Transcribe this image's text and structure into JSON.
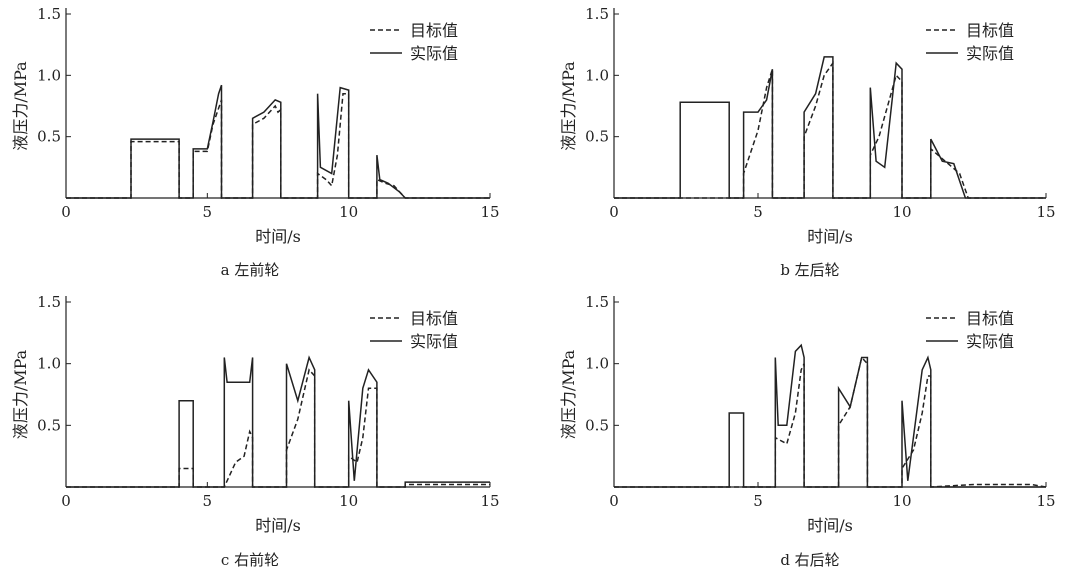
{
  "chart_data": [
    {
      "type": "line",
      "caption": "a 左前轮",
      "xlabel": "时间/s",
      "ylabel": "液压力/MPa",
      "xlim": [
        0,
        15
      ],
      "ylim": [
        0,
        1.5
      ],
      "xticks": [
        "0",
        "5",
        "10",
        "15"
      ],
      "yticks": [
        "0.5",
        "1.0",
        "1.5"
      ],
      "legend": {
        "position": "top-right",
        "entries": [
          "目标值",
          "实际值"
        ]
      },
      "series": [
        {
          "name": "目标值",
          "style": "dashed",
          "x": [
            0,
            2.3,
            2.3,
            4.0,
            4.0,
            4.5,
            4.5,
            5.0,
            5.2,
            5.5,
            5.5,
            6.6,
            6.6,
            7.0,
            7.4,
            7.5,
            7.6,
            7.6,
            8.9,
            8.9,
            9.2,
            9.4,
            9.6,
            9.7,
            9.8,
            10.0,
            10.0,
            11.0,
            11.0,
            11.3,
            11.6,
            12.0,
            15
          ],
          "y": [
            0,
            0,
            0.46,
            0.46,
            0,
            0,
            0.38,
            0.38,
            0.6,
            0.8,
            0,
            0,
            0.6,
            0.65,
            0.75,
            0.7,
            0.72,
            0,
            0,
            0.2,
            0.15,
            0.1,
            0.35,
            0.6,
            0.85,
            0.85,
            0,
            0,
            0.15,
            0.12,
            0.1,
            0,
            0
          ]
        },
        {
          "name": "实际值",
          "style": "solid",
          "x": [
            0,
            2.3,
            2.3,
            4.0,
            4.0,
            4.5,
            4.5,
            5.0,
            5.2,
            5.4,
            5.5,
            5.5,
            6.6,
            6.6,
            7.0,
            7.4,
            7.6,
            7.6,
            8.9,
            8.9,
            9.0,
            9.4,
            9.7,
            10.0,
            10.0,
            11.0,
            11.0,
            11.1,
            11.4,
            11.8,
            12.0,
            15
          ],
          "y": [
            0,
            0,
            0.48,
            0.48,
            0,
            0,
            0.4,
            0.4,
            0.62,
            0.85,
            0.92,
            0,
            0,
            0.65,
            0.7,
            0.8,
            0.78,
            0,
            0,
            0.85,
            0.25,
            0.2,
            0.9,
            0.88,
            0,
            0,
            0.35,
            0.15,
            0.12,
            0.05,
            0,
            0
          ]
        }
      ]
    },
    {
      "type": "line",
      "caption": "b 左后轮",
      "xlabel": "时间/s",
      "ylabel": "液压力/MPa",
      "xlim": [
        0,
        15
      ],
      "ylim": [
        0,
        1.5
      ],
      "xticks": [
        "0",
        "5",
        "10",
        "15"
      ],
      "yticks": [
        "0.5",
        "1.0",
        "1.5"
      ],
      "legend": {
        "position": "top-right",
        "entries": [
          "目标值",
          "实际值"
        ]
      },
      "series": [
        {
          "name": "目标值",
          "style": "dashed",
          "x": [
            0,
            2.3,
            2.3,
            4.0,
            4.0,
            4.5,
            4.5,
            5.0,
            5.3,
            5.5,
            5.5,
            6.6,
            6.6,
            7.0,
            7.3,
            7.6,
            7.6,
            8.9,
            8.9,
            9.2,
            9.5,
            9.8,
            10.0,
            10.0,
            11.0,
            11.0,
            11.5,
            12.0,
            12.3,
            15
          ],
          "y": [
            0,
            0,
            0.0,
            0.0,
            0,
            0,
            0.2,
            0.55,
            0.9,
            1.05,
            0,
            0,
            0.5,
            0.75,
            1.0,
            1.1,
            0,
            0,
            0.35,
            0.5,
            0.75,
            1.0,
            0.95,
            0,
            0,
            0.4,
            0.3,
            0.2,
            0,
            0
          ]
        },
        {
          "name": "实际值",
          "style": "solid",
          "x": [
            0,
            2.3,
            2.3,
            4.0,
            4.0,
            4.5,
            4.5,
            5.0,
            5.3,
            5.5,
            5.5,
            6.6,
            6.6,
            7.0,
            7.3,
            7.6,
            7.6,
            8.9,
            8.9,
            9.1,
            9.4,
            9.8,
            10.0,
            10.0,
            11.0,
            11.0,
            11.4,
            11.8,
            12.2,
            15
          ],
          "y": [
            0,
            0,
            0.78,
            0.78,
            0,
            0,
            0.7,
            0.7,
            0.8,
            1.05,
            0,
            0,
            0.7,
            0.85,
            1.15,
            1.15,
            0,
            0,
            0.9,
            0.3,
            0.25,
            1.1,
            1.05,
            0,
            0,
            0.48,
            0.3,
            0.28,
            0,
            0
          ]
        }
      ]
    },
    {
      "type": "line",
      "caption": "c 右前轮",
      "xlabel": "时间/s",
      "ylabel": "液压力/MPa",
      "xlim": [
        0,
        15
      ],
      "ylim": [
        0,
        1.5
      ],
      "xticks": [
        "0",
        "5",
        "10",
        "15"
      ],
      "yticks": [
        "0.5",
        "1.0",
        "1.5"
      ],
      "legend": {
        "position": "top-right",
        "entries": [
          "目标值",
          "实际值"
        ]
      },
      "series": [
        {
          "name": "目标值",
          "style": "dashed",
          "x": [
            0,
            4.0,
            4.0,
            4.5,
            4.5,
            5.6,
            5.6,
            6.0,
            6.3,
            6.5,
            6.6,
            6.6,
            7.8,
            7.8,
            8.2,
            8.6,
            8.8,
            8.8,
            10.0,
            10.0,
            10.3,
            10.5,
            10.7,
            11.0,
            11.0,
            12.0,
            12.0,
            15
          ],
          "y": [
            0,
            0,
            0.15,
            0.15,
            0,
            0,
            0.0,
            0.2,
            0.25,
            0.45,
            0.4,
            0,
            0,
            0.3,
            0.55,
            0.95,
            0.9,
            0,
            0,
            0.25,
            0.2,
            0.4,
            0.8,
            0.8,
            0,
            0,
            0.02,
            0.02
          ]
        },
        {
          "name": "实际值",
          "style": "solid",
          "x": [
            0,
            4.0,
            4.0,
            4.5,
            4.5,
            5.6,
            5.6,
            5.7,
            6.3,
            6.5,
            6.6,
            6.6,
            7.8,
            7.8,
            8.2,
            8.6,
            8.8,
            8.8,
            10.0,
            10.0,
            10.2,
            10.5,
            10.7,
            11.0,
            11.0,
            12.0,
            12.0,
            15
          ],
          "y": [
            0,
            0,
            0.7,
            0.7,
            0,
            0,
            1.05,
            0.85,
            0.85,
            0.85,
            1.05,
            0,
            0,
            1.0,
            0.7,
            1.05,
            0.95,
            0,
            0,
            0.7,
            0.05,
            0.8,
            0.95,
            0.85,
            0,
            0,
            0.04,
            0.04
          ]
        }
      ]
    },
    {
      "type": "line",
      "caption": "d 右后轮",
      "xlabel": "时间/s",
      "ylabel": "液压力/MPa",
      "xlim": [
        0,
        15
      ],
      "ylim": [
        0,
        1.5
      ],
      "xticks": [
        "0",
        "5",
        "10",
        "15"
      ],
      "yticks": [
        "0.5",
        "1.0",
        "1.5"
      ],
      "legend": {
        "position": "top-right",
        "entries": [
          "目标值",
          "实际值"
        ]
      },
      "series": [
        {
          "name": "目标值",
          "style": "dashed",
          "x": [
            0,
            4.0,
            4.0,
            4.5,
            4.5,
            5.6,
            5.6,
            6.0,
            6.3,
            6.5,
            6.6,
            6.6,
            7.8,
            7.8,
            8.2,
            8.6,
            8.8,
            8.8,
            10.0,
            10.0,
            10.4,
            10.7,
            10.9,
            11.0,
            11.0,
            12.5,
            14.5,
            15
          ],
          "y": [
            0,
            0,
            0.0,
            0.0,
            0,
            0,
            0.4,
            0.35,
            0.6,
            0.95,
            1.0,
            0,
            0,
            0.5,
            0.65,
            1.05,
            1.0,
            0,
            0,
            0.15,
            0.3,
            0.6,
            0.9,
            0.9,
            0,
            0.02,
            0.02,
            0
          ]
        },
        {
          "name": "实际值",
          "style": "solid",
          "x": [
            0,
            4.0,
            4.0,
            4.5,
            4.5,
            5.6,
            5.6,
            5.7,
            6.0,
            6.3,
            6.5,
            6.6,
            6.6,
            7.8,
            7.8,
            8.2,
            8.6,
            8.8,
            8.8,
            10.0,
            10.0,
            10.2,
            10.7,
            10.9,
            11.0,
            11.0,
            15
          ],
          "y": [
            0,
            0,
            0.6,
            0.6,
            0,
            0,
            1.05,
            0.5,
            0.5,
            1.1,
            1.15,
            1.05,
            0,
            0,
            0.8,
            0.65,
            1.05,
            1.05,
            0,
            0,
            0.7,
            0.05,
            0.95,
            1.05,
            0.95,
            0,
            0
          ]
        }
      ]
    }
  ]
}
